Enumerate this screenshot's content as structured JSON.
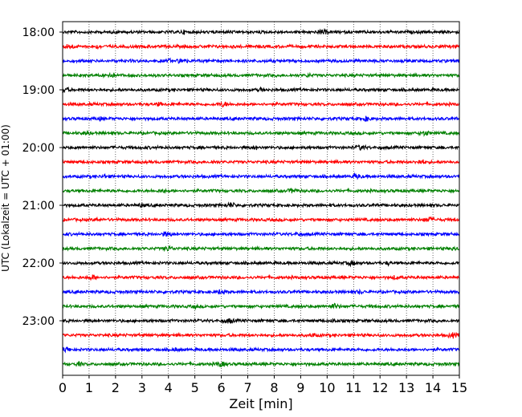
{
  "chart_data": {
    "type": "line",
    "subtype": "helicorder",
    "xlabel": "Zeit  [min]",
    "ylabel": "UTC (Lokalzeit = UTC + 01:00)",
    "xlim": [
      0,
      15
    ],
    "x_ticks": [
      "0",
      "1",
      "2",
      "3",
      "4",
      "5",
      "6",
      "7",
      "8",
      "9",
      "10",
      "11",
      "12",
      "13",
      "14",
      "15"
    ],
    "y_tick_labels": [
      "18:00",
      "19:00",
      "20:00",
      "21:00",
      "22:00",
      "23:00"
    ],
    "trace_start_times": [
      "18:00",
      "18:15",
      "18:30",
      "18:45",
      "19:00",
      "19:15",
      "19:30",
      "19:45",
      "20:00",
      "20:15",
      "20:30",
      "20:45",
      "21:00",
      "21:15",
      "21:30",
      "21:45",
      "22:00",
      "22:15",
      "22:30",
      "22:45",
      "23:00",
      "23:15",
      "23:30",
      "23:45"
    ],
    "trace_color_cycle": [
      "#000000",
      "#ff0000",
      "#0000ff",
      "#008000"
    ],
    "vertical_grid": true,
    "grid_style": "dotted"
  }
}
